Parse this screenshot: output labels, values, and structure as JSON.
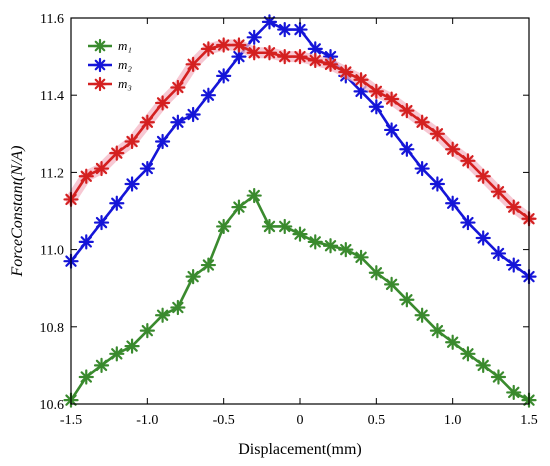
{
  "chart_data": {
    "type": "line",
    "xlabel": "Displacement(mm)",
    "ylabel": "ForceConstant(N/A)",
    "xlim": [
      -1.5,
      1.5
    ],
    "ylim": [
      10.6,
      11.6
    ],
    "xticks": [
      -1.5,
      -1.0,
      -0.5,
      0,
      0.5,
      1.0,
      1.5
    ],
    "xtick_labels": [
      "-1.5",
      "-1.0",
      "-0.5",
      "0",
      "0.5",
      "1.0",
      "1.5"
    ],
    "yticks": [
      10.6,
      10.8,
      11.0,
      11.2,
      11.4,
      11.6
    ],
    "ytick_labels": [
      "10.6",
      "10.8",
      "11.0",
      "11.2",
      "11.4",
      "11.6"
    ],
    "legend_position": "top-left",
    "grid": false,
    "x": [
      -1.5,
      -1.4,
      -1.3,
      -1.2,
      -1.1,
      -1.0,
      -0.9,
      -0.8,
      -0.7,
      -0.6,
      -0.5,
      -0.4,
      -0.3,
      -0.2,
      -0.1,
      0.0,
      0.1,
      0.2,
      0.3,
      0.4,
      0.5,
      0.6,
      0.7,
      0.8,
      0.9,
      1.0,
      1.1,
      1.2,
      1.3,
      1.4,
      1.5
    ],
    "series": [
      {
        "name": "m₁",
        "color": "#3a8a2e",
        "values": [
          10.61,
          10.67,
          10.7,
          10.73,
          10.75,
          10.79,
          10.83,
          10.85,
          10.93,
          10.96,
          11.06,
          11.11,
          11.14,
          11.06,
          11.06,
          11.04,
          11.02,
          11.01,
          11.0,
          10.98,
          10.94,
          10.91,
          10.87,
          10.83,
          10.79,
          10.76,
          10.73,
          10.7,
          10.67,
          10.63,
          10.61
        ]
      },
      {
        "name": "m₂",
        "color": "#1515d8",
        "values": [
          10.97,
          11.02,
          11.07,
          11.12,
          11.17,
          11.21,
          11.28,
          11.33,
          11.35,
          11.4,
          11.45,
          11.5,
          11.55,
          11.59,
          11.57,
          11.57,
          11.52,
          11.5,
          11.45,
          11.41,
          11.37,
          11.31,
          11.26,
          11.21,
          11.17,
          11.12,
          11.07,
          11.03,
          10.99,
          10.96,
          10.93
        ]
      },
      {
        "name": "m₃",
        "color": "#d42020",
        "values": [
          11.13,
          11.19,
          11.21,
          11.25,
          11.28,
          11.33,
          11.38,
          11.42,
          11.48,
          11.52,
          11.53,
          11.53,
          11.51,
          11.51,
          11.5,
          11.5,
          11.49,
          11.48,
          11.46,
          11.44,
          11.41,
          11.39,
          11.36,
          11.33,
          11.3,
          11.26,
          11.23,
          11.19,
          11.15,
          11.11,
          11.08
        ]
      }
    ]
  }
}
